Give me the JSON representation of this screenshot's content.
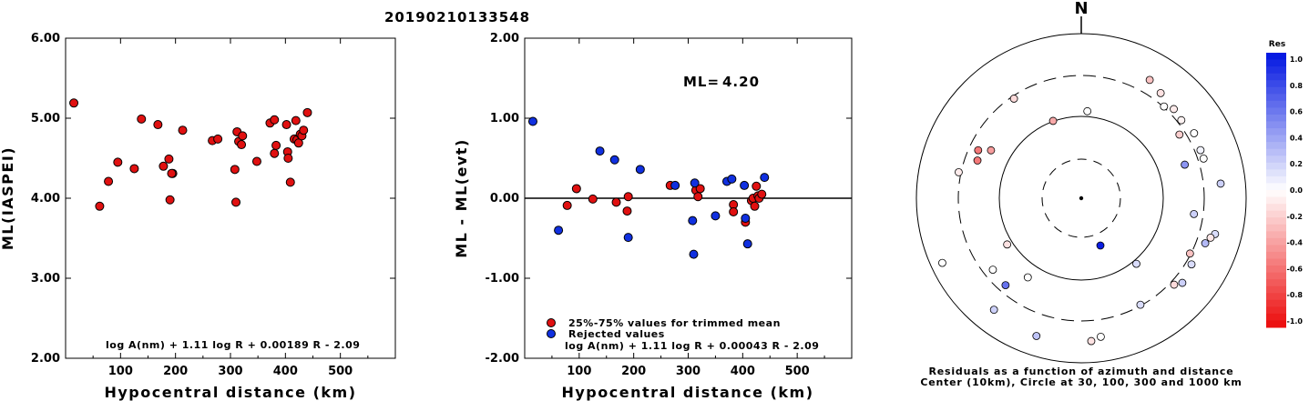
{
  "title": "20190210133548",
  "colors": {
    "accepted": "#e01010",
    "rejected": "#1030e0",
    "neutral": "#ffffff"
  },
  "chart_data": [
    {
      "type": "scatter",
      "id": "left",
      "xlabel": "Hypocentral distance (km)",
      "ylabel": "ML(IASPEI)",
      "xlim": [
        0,
        600
      ],
      "ylim": [
        2.0,
        6.0
      ],
      "xticks": [
        "100",
        "200",
        "300",
        "400",
        "500"
      ],
      "yticks": [
        "2.00",
        "3.00",
        "4.00",
        "5.00",
        "6.00"
      ],
      "formula": "log A(nm) + 1.11 log R + 0.00189 R - 2.09",
      "series": [
        {
          "color": "accepted",
          "x": [
            15,
            62,
            78,
            95,
            125,
            138,
            168,
            178,
            188,
            195,
            190,
            193,
            213,
            267,
            277,
            308,
            310,
            312,
            315,
            320,
            322,
            348,
            372,
            380,
            380,
            383,
            402,
            404,
            405,
            409,
            416,
            419,
            421,
            424,
            427,
            430,
            433,
            440
          ],
          "y": [
            5.19,
            3.9,
            4.21,
            4.45,
            4.37,
            4.99,
            4.92,
            4.4,
            4.49,
            4.31,
            3.98,
            4.31,
            4.85,
            4.72,
            4.74,
            4.36,
            3.95,
            4.83,
            4.71,
            4.67,
            4.78,
            4.46,
            4.94,
            4.98,
            4.56,
            4.66,
            4.92,
            4.58,
            4.5,
            4.2,
            4.74,
            4.97,
            4.73,
            4.69,
            4.8,
            4.78,
            4.85,
            5.07
          ]
        }
      ]
    },
    {
      "type": "scatter",
      "id": "middle",
      "xlabel": "Hypocentral distance (km)",
      "ylabel": "ML - ML(evt)",
      "xlim": [
        0,
        600
      ],
      "ylim": [
        -2.0,
        2.0
      ],
      "xticks": [
        "100",
        "200",
        "300",
        "400",
        "500"
      ],
      "yticks": [
        "-2.00",
        "-1.00",
        "0.00",
        "1.00",
        "2.00"
      ],
      "ml_label": "ML=",
      "ml_value": "4.20",
      "formula": "log A(nm) + 1.11 log R + 0.00043 R - 2.09",
      "legend": {
        "accepted": "25%-75% values for trimmed mean",
        "rejected": "Rejected values"
      },
      "series": [
        {
          "name": "25%-75% values for trimmed mean",
          "color": "accepted",
          "x": [
            78,
            95,
            125,
            168,
            188,
            190,
            267,
            314,
            318,
            322,
            383,
            383,
            405,
            416,
            419,
            422,
            425,
            428,
            430,
            435
          ],
          "y": [
            -0.09,
            0.12,
            -0.01,
            -0.05,
            -0.16,
            0.02,
            0.16,
            0.1,
            0.02,
            0.12,
            -0.08,
            -0.17,
            -0.3,
            -0.03,
            0.0,
            -0.1,
            0.15,
            0.03,
            0.0,
            0.05
          ]
        },
        {
          "name": "Rejected values",
          "color": "rejected",
          "x": [
            15,
            62,
            138,
            165,
            190,
            212,
            276,
            308,
            310,
            312,
            350,
            371,
            380,
            403,
            405,
            409,
            440
          ],
          "y": [
            0.96,
            -0.4,
            0.59,
            0.48,
            -0.49,
            0.36,
            0.16,
            -0.28,
            -0.7,
            0.19,
            -0.22,
            0.21,
            0.24,
            0.16,
            -0.25,
            -0.57,
            0.26
          ]
        }
      ]
    },
    {
      "type": "scatter",
      "id": "azimuth",
      "north_label": "N",
      "caption_line1": "Residuals as a function of azimuth and distance",
      "caption_line2": "Center (10km), Circle at 30, 100, 300 and 1000 km",
      "colorbar_title": "Res",
      "colorbar_ticks": [
        "1.0",
        "0.8",
        "0.6",
        "0.4",
        "0.2",
        "0.0",
        "-0.2",
        "-0.4",
        "-0.6",
        "-0.8",
        "-1.0"
      ],
      "stations": [
        {
          "az": 158,
          "r": 0.31,
          "res": 0.96
        },
        {
          "az": 290,
          "r": 0.67,
          "res": -0.55
        },
        {
          "az": 295,
          "r": 0.69,
          "res": -0.55
        },
        {
          "az": 298,
          "r": 0.62,
          "res": -0.4
        },
        {
          "az": 326,
          "r": 0.73,
          "res": -0.15
        },
        {
          "az": 340,
          "r": 0.5,
          "res": -0.35
        },
        {
          "az": 4,
          "r": 0.53,
          "res": 0.0
        },
        {
          "az": 30,
          "r": 0.83,
          "res": -0.25
        },
        {
          "az": 37,
          "r": 0.8,
          "res": -0.12
        },
        {
          "az": 42,
          "r": 0.75,
          "res": 0.0
        },
        {
          "az": 46,
          "r": 0.78,
          "res": -0.08
        },
        {
          "az": 52,
          "r": 0.77,
          "res": -0.05
        },
        {
          "az": 57,
          "r": 0.71,
          "res": -0.2
        },
        {
          "az": 60,
          "r": 0.79,
          "res": 0.0
        },
        {
          "az": 68,
          "r": 0.78,
          "res": 0.05
        },
        {
          "az": 72,
          "r": 0.78,
          "res": 0.0
        },
        {
          "az": 72,
          "r": 0.66,
          "res": 0.45
        },
        {
          "az": 84,
          "r": 0.85,
          "res": 0.2
        },
        {
          "az": 98,
          "r": 0.69,
          "res": 0.2
        },
        {
          "az": 105,
          "r": 0.84,
          "res": 0.15
        },
        {
          "az": 107,
          "r": 0.82,
          "res": -0.1
        },
        {
          "az": 110,
          "r": 0.8,
          "res": 0.3
        },
        {
          "az": 117,
          "r": 0.74,
          "res": -0.25
        },
        {
          "az": 121,
          "r": 0.78,
          "res": 0.15
        },
        {
          "az": 130,
          "r": 0.8,
          "res": 0.2
        },
        {
          "az": 133,
          "r": 0.77,
          "res": -0.15
        },
        {
          "az": 140,
          "r": 0.52,
          "res": 0.15
        },
        {
          "az": 151,
          "r": 0.74,
          "res": 0.15
        },
        {
          "az": 172,
          "r": 0.85,
          "res": 0.0
        },
        {
          "az": 176,
          "r": 0.87,
          "res": -0.12
        },
        {
          "az": 198,
          "r": 0.88,
          "res": 0.25
        },
        {
          "az": 214,
          "r": 0.58,
          "res": 0.0
        },
        {
          "az": 218,
          "r": 0.86,
          "res": 0.2
        },
        {
          "az": 221,
          "r": 0.7,
          "res": 0.6
        },
        {
          "az": 231,
          "r": 0.69,
          "res": 0.0
        },
        {
          "az": 238,
          "r": 0.53,
          "res": -0.12
        },
        {
          "az": 245,
          "r": 0.93,
          "res": 0.0
        },
        {
          "az": 282,
          "r": 0.76,
          "res": -0.08
        }
      ]
    }
  ]
}
